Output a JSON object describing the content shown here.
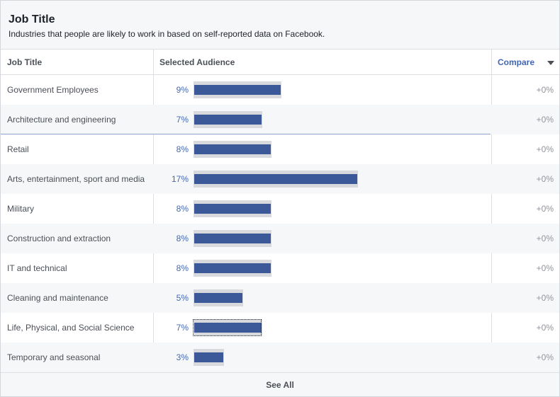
{
  "header": {
    "title": "Job Title",
    "subtitle": "Industries that people are likely to work in based on self-reported data on Facebook."
  },
  "columns": {
    "job_title": "Job Title",
    "selected_audience": "Selected Audience",
    "compare": "Compare"
  },
  "colors": {
    "bar": "#3b5998",
    "track": "#d7d9dd",
    "percent": "#4267b2",
    "compare_text": "#90949c"
  },
  "rows": [
    {
      "label": "Government Employees",
      "percent": "9%",
      "value": 9,
      "compare": "+0%"
    },
    {
      "label": "Architecture and engineering",
      "percent": "7%",
      "value": 7,
      "compare": "+0%"
    },
    {
      "label": "Retail",
      "percent": "8%",
      "value": 8,
      "compare": "+0%"
    },
    {
      "label": "Arts, entertainment, sport and media",
      "percent": "17%",
      "value": 17,
      "compare": "+0%"
    },
    {
      "label": "Military",
      "percent": "8%",
      "value": 8,
      "compare": "+0%"
    },
    {
      "label": "Construction and extraction",
      "percent": "8%",
      "value": 8,
      "compare": "+0%"
    },
    {
      "label": "IT and technical",
      "percent": "8%",
      "value": 8,
      "compare": "+0%"
    },
    {
      "label": "Cleaning and maintenance",
      "percent": "5%",
      "value": 5,
      "compare": "+0%"
    },
    {
      "label": "Life, Physical, and Social Science",
      "percent": "7%",
      "value": 7,
      "compare": "+0%"
    },
    {
      "label": "Temporary and seasonal",
      "percent": "3%",
      "value": 3,
      "compare": "+0%"
    }
  ],
  "footer": {
    "see_all": "See All"
  }
}
